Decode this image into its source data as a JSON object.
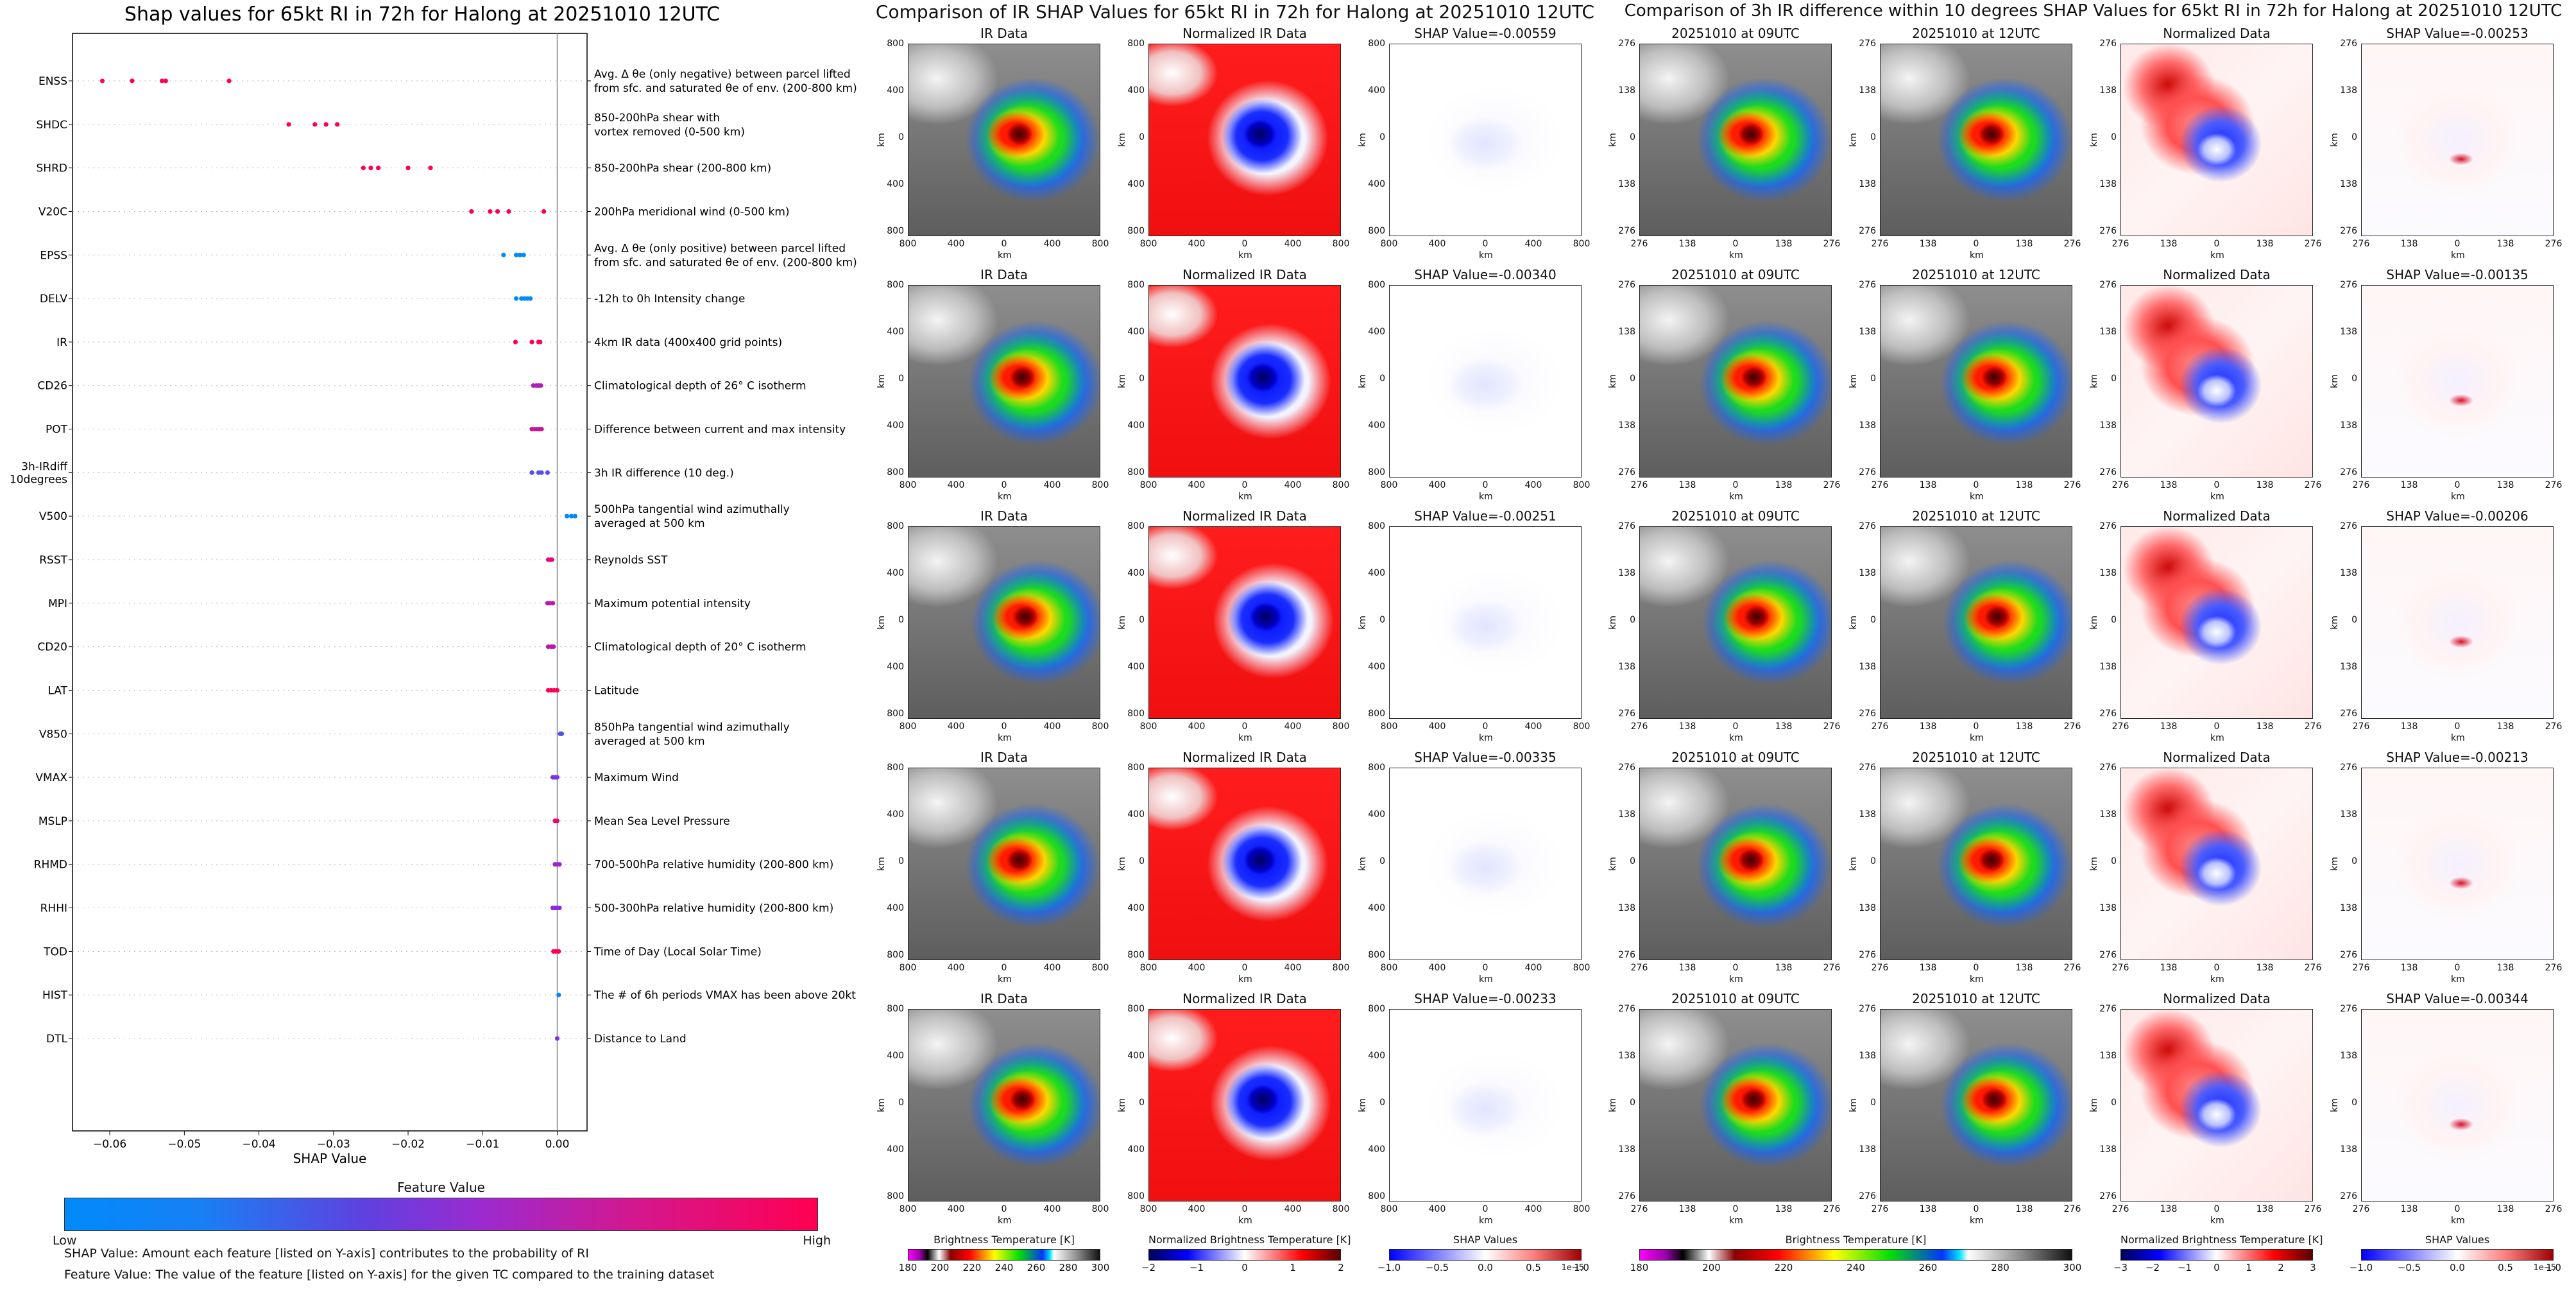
{
  "left_panel": {
    "title": "Shap values for 65kt RI in 72h for Halong at 20251010 12UTC",
    "xlabel": "SHAP Value",
    "colorbar_title": "Feature Value",
    "colorbar_low": "Low",
    "colorbar_high": "High",
    "note1": "SHAP Value: Amount each feature [listed on Y-axis] contributes to the probability of RI",
    "note2": "Feature Value: The value of the feature [listed on Y-axis] for the given TC compared to the training dataset"
  },
  "middle_panel": {
    "title": "Comparison of IR SHAP Values for 65kt RI in 72h for Halong at 20251010 12UTC",
    "col_titles": [
      "IR Data",
      "Normalized IR Data"
    ],
    "shap_values": [
      "SHAP Value=-0.00559",
      "SHAP Value=-0.00340",
      "SHAP Value=-0.00251",
      "SHAP Value=-0.00335",
      "SHAP Value=-0.00233"
    ],
    "axis_label": "km",
    "ticks": [
      "800",
      "400",
      "0",
      "400",
      "800"
    ],
    "colorbars": [
      {
        "label": "Brightness Temperature [K]",
        "ticks": [
          "180",
          "200",
          "220",
          "240",
          "260",
          "280",
          "300"
        ]
      },
      {
        "label": "Normalized Brightness Temperature [K]",
        "ticks": [
          "−2",
          "−1",
          "0",
          "1",
          "2"
        ]
      },
      {
        "label": "SHAP Values",
        "ticks": [
          "−1.0",
          "−0.5",
          "0.0",
          "0.5",
          "1.0"
        ],
        "exponent": "1e−5"
      }
    ]
  },
  "right_panel": {
    "title": "Comparison of 3h IR difference within 10 degrees SHAP Values for 65kt RI in 72h for Halong at 20251010 12UTC",
    "col_titles": [
      "20251010 at 09UTC",
      "20251010 at 12UTC",
      "Normalized Data"
    ],
    "shap_values": [
      "SHAP Value=-0.00253",
      "SHAP Value=-0.00135",
      "SHAP Value=-0.00206",
      "SHAP Value=-0.00213",
      "SHAP Value=-0.00344"
    ],
    "axis_label": "km",
    "ticks": [
      "276",
      "138",
      "0",
      "138",
      "276"
    ],
    "colorbars": [
      {
        "label": "Brightness Temperature [K]",
        "ticks": [
          "180",
          "200",
          "220",
          "240",
          "260",
          "280",
          "300"
        ]
      },
      {
        "label": "Normalized Brightness Temperature [K]",
        "ticks": [
          "−3",
          "−2",
          "−1",
          "0",
          "1",
          "2",
          "3"
        ]
      },
      {
        "label": "SHAP Values",
        "ticks": [
          "−1.0",
          "−0.5",
          "0.0",
          "0.5",
          "1.0"
        ],
        "exponent": "1e−5"
      }
    ]
  },
  "chart_data": {
    "type": "scatter",
    "title": "Shap values for 65kt RI in 72h for Halong at 20251010 12UTC",
    "xlabel": "SHAP Value",
    "xlim": [
      -0.065,
      0.004
    ],
    "xticks": [
      "−0.06",
      "−0.05",
      "−0.04",
      "−0.03",
      "−0.02",
      "−0.01",
      "0.00"
    ],
    "xtick_values": [
      -0.06,
      -0.05,
      -0.04,
      -0.03,
      -0.02,
      -0.01,
      0.0
    ],
    "colors": {
      "low": "#008afb",
      "mid": "#8a2be2",
      "high": "#ff0052"
    },
    "features": [
      {
        "name": "ENSS",
        "desc": [
          "Avg. Δ θe (only negative) between parcel lifted",
          "from sfc. and saturated θe of env. (200-800 km)"
        ],
        "values": [
          -0.061,
          -0.057,
          -0.053,
          -0.0525,
          -0.044
        ],
        "level": 1.0
      },
      {
        "name": "SHDC",
        "desc": [
          "850-200hPa shear with",
          "vortex removed (0-500 km)"
        ],
        "values": [
          -0.036,
          -0.0325,
          -0.031,
          -0.0295
        ],
        "level": 1.0
      },
      {
        "name": "SHRD",
        "desc": [
          "850-200hPa shear (200-800 km)"
        ],
        "values": [
          -0.026,
          -0.025,
          -0.024,
          -0.02,
          -0.017
        ],
        "level": 1.0
      },
      {
        "name": "V20C",
        "desc": [
          "200hPa meridional wind (0-500 km)"
        ],
        "values": [
          -0.0115,
          -0.009,
          -0.008,
          -0.0065,
          -0.0018
        ],
        "level": 1.0
      },
      {
        "name": "EPSS",
        "desc": [
          "Avg. Δ θe (only positive) between parcel lifted",
          "from sfc. and saturated θe of env. (200-800 km)"
        ],
        "values": [
          -0.0072,
          -0.0055,
          -0.005,
          -0.0045
        ],
        "level": 0.0
      },
      {
        "name": "DELV",
        "desc": [
          "-12h to 0h Intensity change"
        ],
        "values": [
          -0.0055,
          -0.0048,
          -0.0044,
          -0.004,
          -0.0036
        ],
        "level": 0.0
      },
      {
        "name": "IR",
        "desc": [
          "4km IR data (400x400 grid points)"
        ],
        "values": [
          -0.0056,
          -0.0034,
          -0.0025,
          -0.0023
        ],
        "level": 1.0
      },
      {
        "name": "CD26",
        "desc": [
          "Climatological depth of 26° C isotherm"
        ],
        "values": [
          -0.0032,
          -0.0028,
          -0.0025,
          -0.0022
        ],
        "level": 0.65
      },
      {
        "name": "POT",
        "desc": [
          "Difference between current and max intensity"
        ],
        "values": [
          -0.0034,
          -0.003,
          -0.0027,
          -0.0024,
          -0.0021
        ],
        "level": 0.75
      },
      {
        "name": "3h-IRdiff\n10degrees",
        "desc": [
          "3h IR difference (10 deg.)"
        ],
        "values": [
          -0.0034,
          -0.0025,
          -0.0021,
          -0.0013
        ],
        "level": 0.3
      },
      {
        "name": "V500",
        "desc": [
          "500hPa tangential wind azimuthally",
          "averaged at 500 km"
        ],
        "values": [
          0.0013,
          0.0019,
          0.0024
        ],
        "level": 0.0
      },
      {
        "name": "RSST",
        "desc": [
          "Reynolds SST"
        ],
        "values": [
          -0.0012,
          -0.0009,
          -0.0007
        ],
        "level": 0.85
      },
      {
        "name": "MPI",
        "desc": [
          "Maximum potential intensity"
        ],
        "values": [
          -0.0013,
          -0.001,
          -0.0006
        ],
        "level": 0.7
      },
      {
        "name": "CD20",
        "desc": [
          "Climatological depth of 20° C isotherm"
        ],
        "values": [
          -0.0012,
          -0.0008,
          -0.0005
        ],
        "level": 0.7
      },
      {
        "name": "LAT",
        "desc": [
          "Latitude"
        ],
        "values": [
          -0.0012,
          -0.0008,
          -0.0004,
          0.0
        ],
        "level": 1.0
      },
      {
        "name": "V850",
        "desc": [
          "850hPa tangential wind azimuthally",
          "averaged at 500 km"
        ],
        "values": [
          0.0004,
          0.0006
        ],
        "level": 0.3
      },
      {
        "name": "VMAX",
        "desc": [
          "Maximum Wind"
        ],
        "values": [
          -0.0006,
          -0.0003,
          0.0
        ],
        "level": 0.45
      },
      {
        "name": "MSLP",
        "desc": [
          "Mean Sea Level Pressure"
        ],
        "values": [
          -0.0003,
          0.0
        ],
        "level": 0.9
      },
      {
        "name": "RHMD",
        "desc": [
          "700-500hPa relative humidity (200-800 km)"
        ],
        "values": [
          -0.0003,
          0.0,
          0.0003
        ],
        "level": 0.6
      },
      {
        "name": "RHHI",
        "desc": [
          "500-300hPa relative humidity (200-800 km)"
        ],
        "values": [
          -0.0006,
          -0.0003,
          0.0,
          0.0003
        ],
        "level": 0.5
      },
      {
        "name": "TOD",
        "desc": [
          "Time of Day (Local Solar Time)"
        ],
        "values": [
          -0.0005,
          -0.0002,
          0.0002
        ],
        "level": 1.0
      },
      {
        "name": "HIST",
        "desc": [
          "The # of 6h periods VMAX has been above 20kt"
        ],
        "values": [
          0.0002
        ],
        "level": 0.0
      },
      {
        "name": "DTL",
        "desc": [
          "Distance to Land"
        ],
        "values": [
          0.0
        ],
        "level": 0.45
      }
    ]
  }
}
